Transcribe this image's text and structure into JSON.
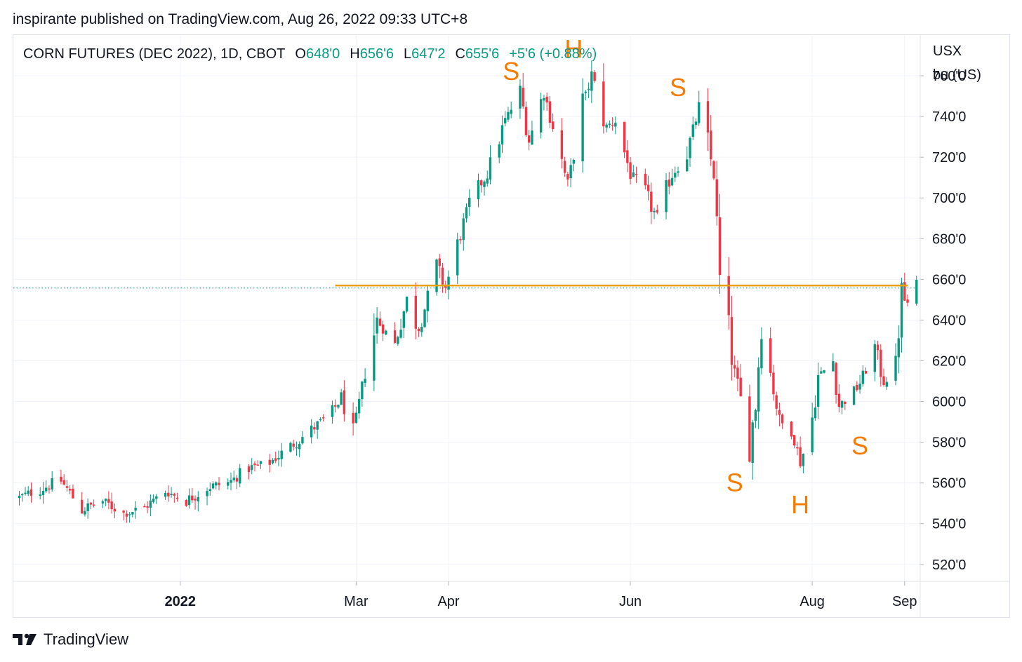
{
  "header": {
    "publish_line": "inspirante published on TradingView.com, Aug 26, 2022 09:33 UTC+8"
  },
  "legend": {
    "symbol": "CORN FUTURES (DEC 2022), 1D, CBOT",
    "open_label": "O",
    "open": "648'0",
    "high_label": "H",
    "high": "656'6",
    "low_label": "L",
    "low": "647'2",
    "close_label": "C",
    "close": "655'6",
    "change": "+5'6 (+0.88%)"
  },
  "axis": {
    "unit_line1": "USX",
    "unit_line2": "bu (US)"
  },
  "footer": {
    "brand": "TradingView",
    "logo_icon": "tradingview-logo-icon"
  },
  "colors": {
    "up": "#089981",
    "down": "#f23645",
    "neckline": "#e8a100",
    "annotation": "#f57c00",
    "grid": "#f0f3fa",
    "text": "#131722"
  },
  "chart_data": {
    "type": "candlestick",
    "ylim": [
      512,
      780
    ],
    "y_ticks": [
      520,
      540,
      560,
      580,
      600,
      620,
      640,
      660,
      680,
      700,
      720,
      740,
      760
    ],
    "y_tick_labels": [
      "520'0",
      "540'0",
      "560'0",
      "580'0",
      "600'0",
      "620'0",
      "640'0",
      "660'0",
      "680'0",
      "700'0",
      "720'0",
      "740'0",
      "760'0"
    ],
    "x_range": [
      "2021-11-06",
      "2022-09-06"
    ],
    "x_ticks": [
      {
        "date": "2022-01-01",
        "label": "2022",
        "bold": true
      },
      {
        "date": "2022-03-01",
        "label": "Mar"
      },
      {
        "date": "2022-04-01",
        "label": "Apr"
      },
      {
        "date": "2022-06-01",
        "label": "Jun"
      },
      {
        "date": "2022-08-01",
        "label": "Aug"
      },
      {
        "date": "2022-09-01",
        "label": "Sep"
      }
    ],
    "vertical_grid_dates": [
      "2022-01-01",
      "2022-03-01",
      "2022-04-01",
      "2022-06-01",
      "2022-08-01",
      "2022-09-01"
    ],
    "last_price": 655.75,
    "neckline": {
      "value": 657,
      "from": "2022-02-22",
      "to": "2022-09-02"
    },
    "annotations": [
      {
        "text": "S",
        "date": "2022-04-22",
        "value": 758
      },
      {
        "text": "H",
        "date": "2022-05-13",
        "value": 769
      },
      {
        "text": "S",
        "date": "2022-06-17",
        "value": 750
      },
      {
        "text": "S",
        "date": "2022-07-06",
        "value": 556
      },
      {
        "text": "H",
        "date": "2022-07-28",
        "value": 545
      },
      {
        "text": "S",
        "date": "2022-08-17",
        "value": 574
      }
    ],
    "close_path": [
      {
        "date": "2021-11-08",
        "c": 553
      },
      {
        "date": "2021-11-15",
        "c": 557
      },
      {
        "date": "2021-11-22",
        "c": 561
      },
      {
        "date": "2021-11-29",
        "c": 547
      },
      {
        "date": "2021-12-06",
        "c": 551
      },
      {
        "date": "2021-12-13",
        "c": 545
      },
      {
        "date": "2021-12-20",
        "c": 548
      },
      {
        "date": "2021-12-27",
        "c": 556
      },
      {
        "date": "2022-01-03",
        "c": 551
      },
      {
        "date": "2022-01-10",
        "c": 558
      },
      {
        "date": "2022-01-17",
        "c": 560
      },
      {
        "date": "2022-01-24",
        "c": 567
      },
      {
        "date": "2022-01-31",
        "c": 570
      },
      {
        "date": "2022-02-07",
        "c": 578
      },
      {
        "date": "2022-02-14",
        "c": 586
      },
      {
        "date": "2022-02-21",
        "c": 595
      },
      {
        "date": "2022-02-24",
        "c": 602
      },
      {
        "date": "2022-02-28",
        "c": 584
      },
      {
        "date": "2022-03-04",
        "c": 614
      },
      {
        "date": "2022-03-08",
        "c": 640
      },
      {
        "date": "2022-03-14",
        "c": 628
      },
      {
        "date": "2022-03-18",
        "c": 650
      },
      {
        "date": "2022-03-22",
        "c": 636
      },
      {
        "date": "2022-03-28",
        "c": 666
      },
      {
        "date": "2022-03-31",
        "c": 656
      },
      {
        "date": "2022-04-04",
        "c": 676
      },
      {
        "date": "2022-04-08",
        "c": 698
      },
      {
        "date": "2022-04-14",
        "c": 712
      },
      {
        "date": "2022-04-20",
        "c": 738
      },
      {
        "date": "2022-04-25",
        "c": 752
      },
      {
        "date": "2022-04-28",
        "c": 728
      },
      {
        "date": "2022-05-03",
        "c": 752
      },
      {
        "date": "2022-05-06",
        "c": 735
      },
      {
        "date": "2022-05-11",
        "c": 706
      },
      {
        "date": "2022-05-16",
        "c": 745
      },
      {
        "date": "2022-05-19",
        "c": 760
      },
      {
        "date": "2022-05-24",
        "c": 735
      },
      {
        "date": "2022-05-27",
        "c": 738
      },
      {
        "date": "2022-06-01",
        "c": 712
      },
      {
        "date": "2022-06-06",
        "c": 702
      },
      {
        "date": "2022-06-10",
        "c": 690
      },
      {
        "date": "2022-06-15",
        "c": 712
      },
      {
        "date": "2022-06-20",
        "c": 722
      },
      {
        "date": "2022-06-24",
        "c": 744
      },
      {
        "date": "2022-06-29",
        "c": 712
      },
      {
        "date": "2022-07-01",
        "c": 658
      },
      {
        "date": "2022-07-06",
        "c": 614
      },
      {
        "date": "2022-07-11",
        "c": 580
      },
      {
        "date": "2022-07-13",
        "c": 598
      },
      {
        "date": "2022-07-15",
        "c": 640
      },
      {
        "date": "2022-07-18",
        "c": 614
      },
      {
        "date": "2022-07-21",
        "c": 590
      },
      {
        "date": "2022-07-25",
        "c": 586
      },
      {
        "date": "2022-07-28",
        "c": 571
      },
      {
        "date": "2022-07-31",
        "c": 582
      },
      {
        "date": "2022-08-03",
        "c": 612
      },
      {
        "date": "2022-08-08",
        "c": 620
      },
      {
        "date": "2022-08-10",
        "c": 598
      },
      {
        "date": "2022-08-15",
        "c": 604
      },
      {
        "date": "2022-08-18",
        "c": 612
      },
      {
        "date": "2022-08-22",
        "c": 626
      },
      {
        "date": "2022-08-25",
        "c": 610
      },
      {
        "date": "2022-08-29",
        "c": 618
      },
      {
        "date": "2022-08-31",
        "c": 652
      },
      {
        "date": "2022-09-02",
        "c": 648
      },
      {
        "date": "2022-09-05",
        "c": 655.75
      }
    ]
  }
}
